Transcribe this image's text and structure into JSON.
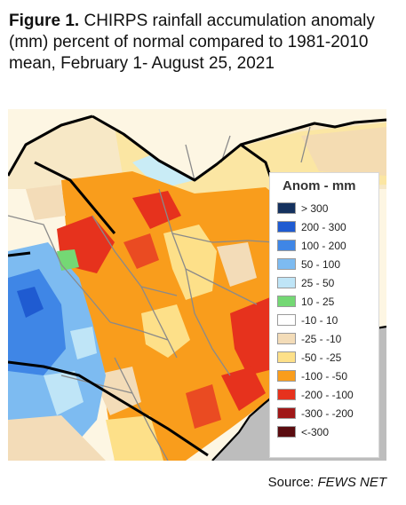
{
  "caption": {
    "figure_label": "Figure 1.",
    "text": "CHIRPS rainfall accumulation anomaly (mm) percent of normal compared to 1981-2010 mean, February 1- August 25, 2021"
  },
  "map": {
    "water_color": "#bdbdbd",
    "border_color": "#000000",
    "admin_line_color": "#8a8a8a"
  },
  "legend": {
    "title": "Anom - mm",
    "items": [
      {
        "label": "> 300",
        "color": "#15315e"
      },
      {
        "label": "200 - 300",
        "color": "#1f5bd1"
      },
      {
        "label": "100 - 200",
        "color": "#3f86e6"
      },
      {
        "label": "50 - 100",
        "color": "#7dbbf1"
      },
      {
        "label": "25 - 50",
        "color": "#bfe5f7"
      },
      {
        "label": "10 - 25",
        "color": "#74d874"
      },
      {
        "label": "-10 - 10",
        "color": "#ffffff"
      },
      {
        "label": "-25 - -10",
        "color": "#f3dcb8"
      },
      {
        "label": "-50 - -25",
        "color": "#fde089"
      },
      {
        "label": "-100 - -50",
        "color": "#f99d1c"
      },
      {
        "label": "-200 - -100",
        "color": "#e6321d"
      },
      {
        "label": "-300 - -200",
        "color": "#a01818"
      },
      {
        "label": "<-300",
        "color": "#5a0c10"
      }
    ]
  },
  "source": {
    "prefix": "Source: ",
    "name": "FEWS NET"
  }
}
